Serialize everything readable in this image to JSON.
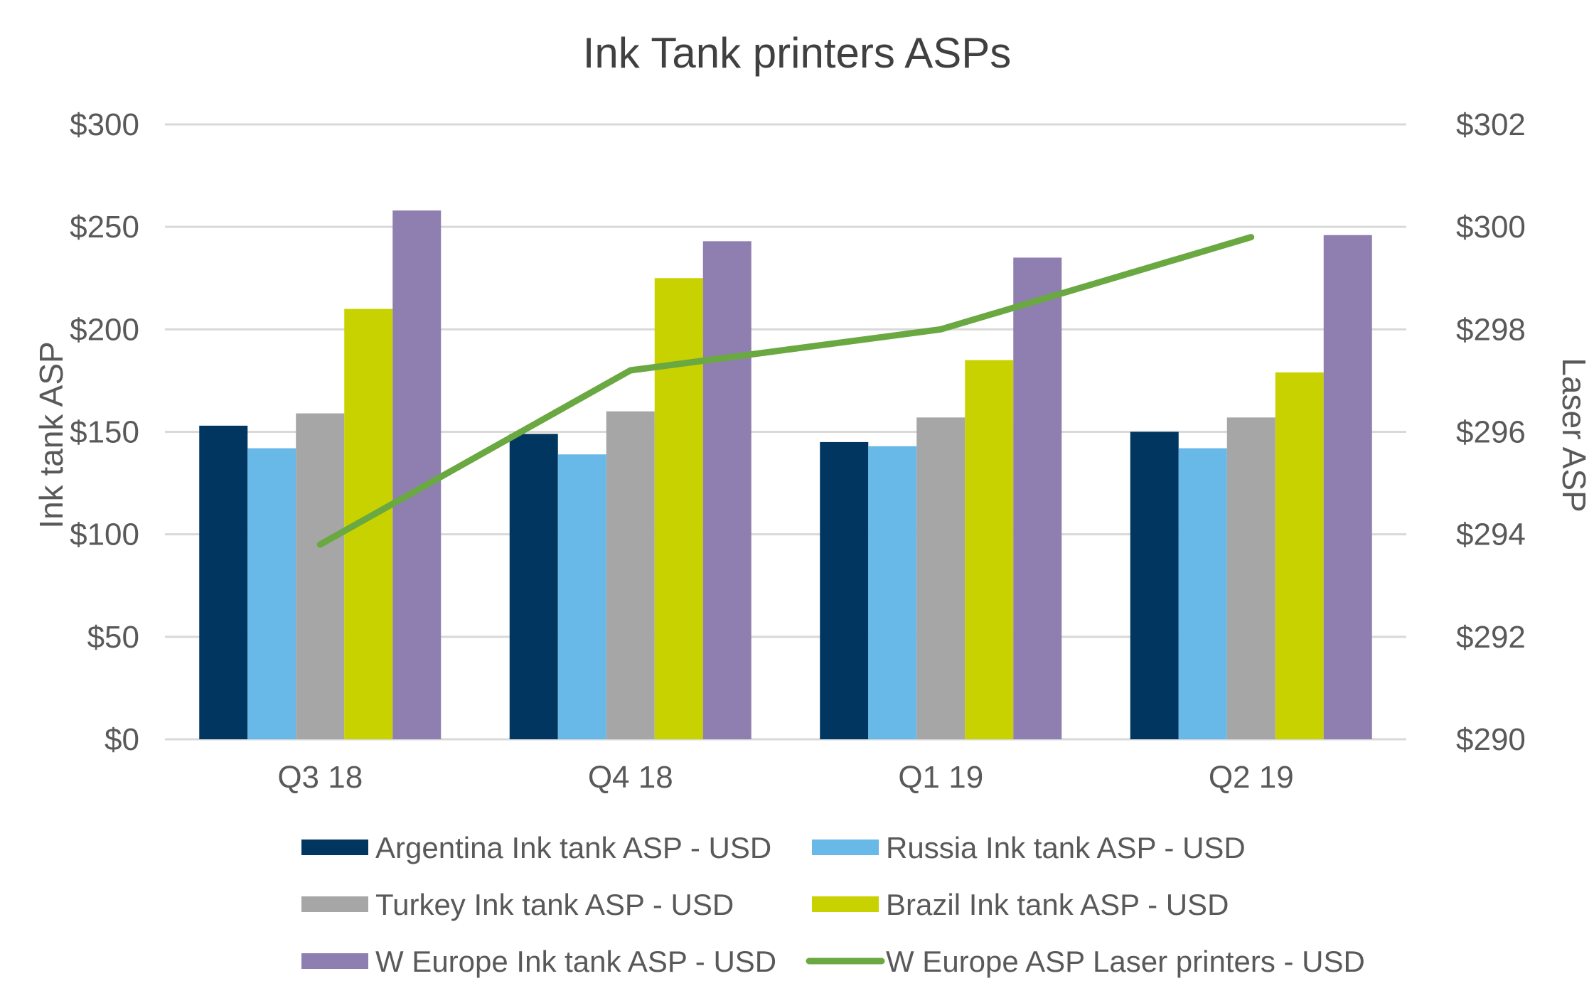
{
  "chart_data": {
    "type": "bar",
    "title": "Ink Tank printers ASPs",
    "categories": [
      "Q3 18",
      "Q4 18",
      "Q1 19",
      "Q2 19"
    ],
    "y_left": {
      "label": "Ink tank ASP",
      "ylim": [
        0,
        300
      ],
      "ticks": [
        0,
        50,
        100,
        150,
        200,
        250,
        300
      ],
      "tick_labels": [
        "$0",
        "$50",
        "$100",
        "$150",
        "$200",
        "$250",
        "$300"
      ]
    },
    "y_right": {
      "label": "Laser ASP",
      "ylim": [
        290,
        302
      ],
      "ticks": [
        290,
        292,
        294,
        296,
        298,
        300,
        302
      ],
      "tick_labels": [
        "$290",
        "$292",
        "$294",
        "$296",
        "$298",
        "$300",
        "$302"
      ]
    },
    "series": [
      {
        "name": "Argentina Ink tank ASP - USD",
        "type": "bar",
        "axis": "left",
        "color": "#003660",
        "values": [
          153,
          149,
          145,
          150
        ]
      },
      {
        "name": "Russia Ink tank ASP - USD",
        "type": "bar",
        "axis": "left",
        "color": "#68b8e8",
        "values": [
          142,
          139,
          143,
          142
        ]
      },
      {
        "name": "Turkey Ink tank ASP - USD",
        "type": "bar",
        "axis": "left",
        "color": "#a6a6a6",
        "values": [
          159,
          160,
          157,
          157
        ]
      },
      {
        "name": "Brazil Ink tank ASP - USD",
        "type": "bar",
        "axis": "left",
        "color": "#c8d200",
        "values": [
          210,
          225,
          185,
          179
        ]
      },
      {
        "name": "W Europe Ink tank ASP - USD",
        "type": "bar",
        "axis": "left",
        "color": "#8f7fb0",
        "values": [
          258,
          243,
          235,
          246
        ]
      },
      {
        "name": "W Europe ASP Laser printers - USD",
        "type": "line",
        "axis": "right",
        "color": "#6aa842",
        "values": [
          293.8,
          297.2,
          298.0,
          299.8
        ]
      }
    ],
    "grid": true,
    "legend_position": "bottom"
  }
}
